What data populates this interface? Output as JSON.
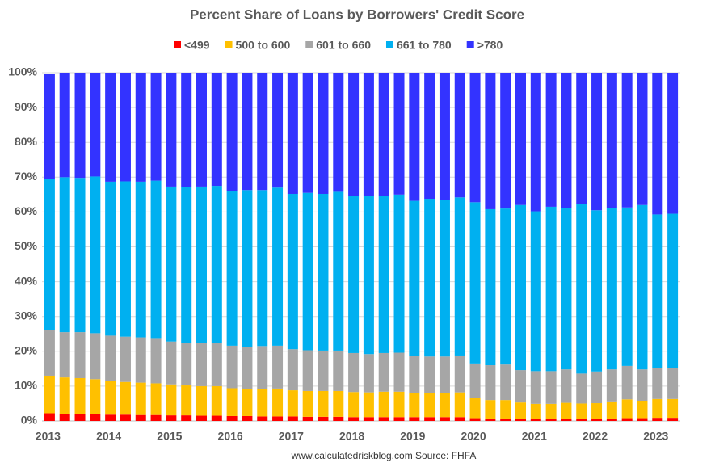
{
  "chart_data": {
    "type": "stacked_bar",
    "title": "Percent Share of Loans by Borrowers' Credit Score",
    "source": "www.calculatedriskblog.com  Source: FHFA",
    "categories": [
      "2013",
      null,
      null,
      null,
      "2014",
      null,
      null,
      null,
      "2015",
      null,
      null,
      null,
      "2016",
      null,
      null,
      null,
      "2017",
      null,
      null,
      null,
      "2018",
      null,
      null,
      null,
      "2019",
      null,
      null,
      null,
      "2020",
      null,
      null,
      null,
      "2021",
      null,
      null,
      null,
      "2022",
      null,
      null,
      null,
      "2023",
      null
    ],
    "series": [
      {
        "name": "<499",
        "color": "#ff0000",
        "values": [
          2.2,
          2.0,
          2.0,
          1.9,
          1.8,
          1.8,
          1.7,
          1.7,
          1.6,
          1.6,
          1.5,
          1.5,
          1.4,
          1.4,
          1.3,
          1.3,
          1.3,
          1.2,
          1.2,
          1.2,
          1.1,
          1.1,
          1.1,
          1.1,
          1.1,
          1.1,
          1.1,
          1.1,
          0.8,
          0.7,
          0.7,
          0.6,
          0.5,
          0.5,
          0.5,
          0.5,
          0.6,
          0.7,
          0.8,
          0.8,
          0.9,
          0.9
        ]
      },
      {
        "name": "500 to 600",
        "color": "#ffc000",
        "values": [
          10.8,
          10.5,
          10.3,
          10.1,
          9.8,
          9.4,
          9.3,
          9.1,
          8.9,
          8.6,
          8.5,
          8.5,
          8.0,
          7.8,
          7.9,
          8.0,
          7.5,
          7.4,
          7.4,
          7.4,
          7.2,
          7.1,
          7.3,
          7.3,
          6.9,
          6.9,
          6.9,
          7.1,
          5.8,
          5.3,
          5.3,
          4.7,
          4.4,
          4.4,
          4.7,
          4.5,
          4.5,
          4.9,
          5.4,
          5.0,
          5.4,
          5.4
        ]
      },
      {
        "name": "601 to 660",
        "color": "#a6a6a6",
        "values": [
          13.0,
          13.0,
          13.2,
          13.2,
          12.9,
          13.0,
          13.0,
          13.0,
          12.3,
          12.3,
          12.5,
          12.5,
          12.2,
          12.0,
          12.3,
          12.3,
          11.8,
          11.7,
          11.6,
          11.6,
          11.2,
          11.0,
          11.1,
          11.2,
          10.6,
          10.5,
          10.5,
          10.6,
          9.9,
          10.0,
          10.2,
          9.3,
          9.4,
          9.4,
          9.6,
          8.6,
          9.1,
          9.2,
          9.6,
          9.0,
          9.0,
          9.0
        ]
      },
      {
        "name": "661 to 780",
        "color": "#00b0f0",
        "values": [
          43.5,
          44.5,
          44.3,
          45.0,
          44.2,
          44.6,
          44.7,
          45.2,
          44.5,
          44.7,
          44.8,
          45.0,
          44.4,
          45.1,
          44.8,
          45.4,
          44.6,
          45.2,
          45.0,
          45.6,
          45.0,
          45.5,
          45.0,
          45.4,
          44.6,
          45.3,
          45.0,
          45.4,
          46.3,
          44.8,
          44.8,
          47.4,
          45.9,
          47.2,
          46.4,
          48.7,
          46.3,
          46.4,
          45.5,
          47.2,
          44.0,
          44.2
        ]
      },
      {
        "name": ">780",
        "color": "#3333ff",
        "values": [
          30.1,
          30.0,
          30.2,
          29.8,
          31.3,
          31.2,
          31.3,
          31.0,
          32.7,
          32.8,
          32.7,
          32.5,
          34.0,
          33.7,
          33.7,
          33.0,
          34.8,
          34.5,
          34.8,
          34.2,
          35.5,
          35.3,
          35.5,
          35.0,
          36.8,
          36.2,
          36.5,
          35.8,
          37.2,
          39.2,
          39.0,
          38.0,
          39.8,
          38.5,
          38.8,
          37.7,
          39.5,
          38.8,
          38.7,
          38.0,
          40.7,
          40.5
        ]
      }
    ],
    "ylim": [
      0,
      100
    ],
    "yticks": [
      {
        "value": 0,
        "label": "0%"
      },
      {
        "value": 10,
        "label": "10%"
      },
      {
        "value": 20,
        "label": "20%"
      },
      {
        "value": 30,
        "label": "30%"
      },
      {
        "value": 40,
        "label": "40%"
      },
      {
        "value": 50,
        "label": "50%"
      },
      {
        "value": 60,
        "label": "60%"
      },
      {
        "value": 70,
        "label": "70%"
      },
      {
        "value": 80,
        "label": "80%"
      },
      {
        "value": 90,
        "label": "90%"
      },
      {
        "value": 100,
        "label": "100%"
      }
    ],
    "grid": true,
    "legend": "top"
  }
}
